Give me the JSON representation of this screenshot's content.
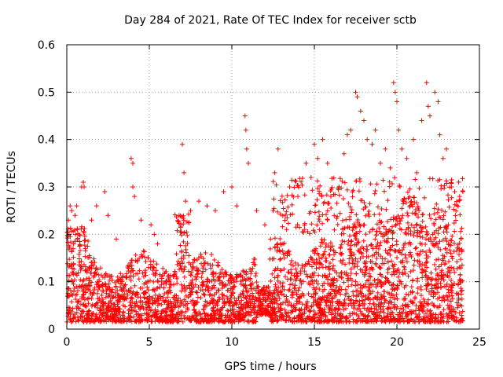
{
  "chart_data": {
    "type": "scatter",
    "title": "Day 284 of 2021, Rate Of TEC Index for receiver sctb",
    "xlabel": "GPS time / hours",
    "ylabel": "ROTI / TECUs",
    "xlim": [
      0,
      25
    ],
    "ylim": [
      0,
      0.6
    ],
    "xticks": [
      "0",
      "5",
      "10",
      "15",
      "20",
      "25"
    ],
    "yticks": [
      "0",
      "0.1",
      "0.2",
      "0.3",
      "0.4",
      "0.5",
      "0.6"
    ],
    "grid": true,
    "marker": "+",
    "color": "#ff0000",
    "series": [
      {
        "points": [
          [
            0.1,
            0.23
          ],
          [
            0.2,
            0.26
          ],
          [
            0.3,
            0.25
          ],
          [
            0.5,
            0.24
          ],
          [
            0.6,
            0.26
          ],
          [
            0.9,
            0.3
          ],
          [
            1.0,
            0.31
          ],
          [
            1.05,
            0.3
          ],
          [
            1.5,
            0.23
          ],
          [
            1.8,
            0.26
          ],
          [
            2.3,
            0.29
          ],
          [
            2.5,
            0.24
          ],
          [
            3.0,
            0.19
          ],
          [
            3.9,
            0.36
          ],
          [
            4.0,
            0.35
          ],
          [
            4.0,
            0.3
          ],
          [
            4.1,
            0.28
          ],
          [
            4.5,
            0.23
          ],
          [
            5.1,
            0.22
          ],
          [
            5.3,
            0.2
          ],
          [
            5.5,
            0.18
          ],
          [
            6.8,
            0.24
          ],
          [
            7.0,
            0.39
          ],
          [
            7.1,
            0.33
          ],
          [
            7.2,
            0.27
          ],
          [
            7.5,
            0.25
          ],
          [
            8.0,
            0.27
          ],
          [
            8.5,
            0.26
          ],
          [
            9.0,
            0.25
          ],
          [
            9.5,
            0.29
          ],
          [
            10.0,
            0.3
          ],
          [
            10.3,
            0.26
          ],
          [
            10.8,
            0.45
          ],
          [
            10.85,
            0.42
          ],
          [
            10.9,
            0.38
          ],
          [
            11.0,
            0.35
          ],
          [
            11.5,
            0.25
          ],
          [
            12.0,
            0.22
          ],
          [
            12.5,
            0.25
          ],
          [
            12.6,
            0.33
          ],
          [
            12.8,
            0.38
          ],
          [
            13.5,
            0.3
          ],
          [
            14.0,
            0.28
          ],
          [
            14.5,
            0.35
          ],
          [
            14.8,
            0.32
          ],
          [
            15.0,
            0.39
          ],
          [
            15.2,
            0.36
          ],
          [
            15.5,
            0.4
          ],
          [
            15.8,
            0.35
          ],
          [
            16.0,
            0.28
          ],
          [
            16.5,
            0.3
          ],
          [
            16.8,
            0.37
          ],
          [
            17.0,
            0.41
          ],
          [
            17.2,
            0.42
          ],
          [
            17.5,
            0.5
          ],
          [
            17.6,
            0.49
          ],
          [
            17.8,
            0.46
          ],
          [
            18.0,
            0.44
          ],
          [
            18.2,
            0.4
          ],
          [
            18.5,
            0.39
          ],
          [
            18.7,
            0.42
          ],
          [
            19.0,
            0.35
          ],
          [
            19.3,
            0.38
          ],
          [
            19.6,
            0.34
          ],
          [
            19.8,
            0.52
          ],
          [
            19.9,
            0.5
          ],
          [
            20.0,
            0.48
          ],
          [
            20.1,
            0.42
          ],
          [
            20.3,
            0.38
          ],
          [
            20.6,
            0.36
          ],
          [
            21.0,
            0.4
          ],
          [
            21.2,
            0.33
          ],
          [
            21.5,
            0.44
          ],
          [
            21.8,
            0.52
          ],
          [
            21.9,
            0.47
          ],
          [
            22.0,
            0.45
          ],
          [
            22.3,
            0.5
          ],
          [
            22.5,
            0.48
          ],
          [
            22.6,
            0.41
          ],
          [
            22.8,
            0.36
          ],
          [
            23.0,
            0.38
          ],
          [
            23.3,
            0.3
          ],
          [
            23.5,
            0.29
          ],
          [
            23.8,
            0.28
          ],
          [
            24.0,
            0.29
          ]
        ]
      }
    ]
  }
}
